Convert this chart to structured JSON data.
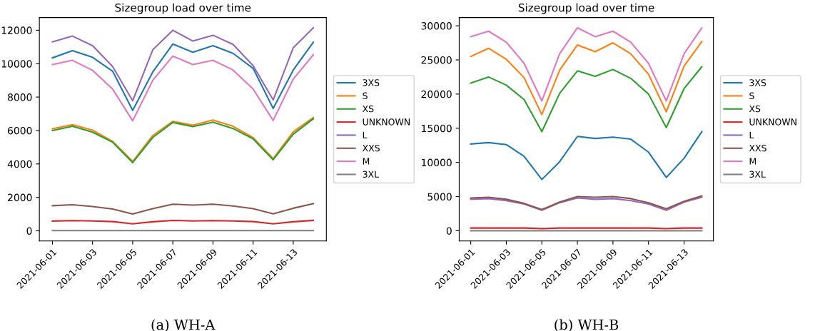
{
  "chart_data": [
    {
      "type": "line",
      "title": "Sizegroup load over time",
      "x": [
        "2021-06-01",
        "2021-06-02",
        "2021-06-03",
        "2021-06-04",
        "2021-06-05",
        "2021-06-06",
        "2021-06-07",
        "2021-06-08",
        "2021-06-09",
        "2021-06-10",
        "2021-06-11",
        "2021-06-12",
        "2021-06-13",
        "2021-06-14"
      ],
      "xlim": [
        "2021-05-31T08:24",
        "2021-06-14T15:36"
      ],
      "xticks": [
        "2021-06-01",
        "2021-06-03",
        "2021-06-05",
        "2021-06-07",
        "2021-06-09",
        "2021-06-11",
        "2021-06-13"
      ],
      "ylim": [
        -610,
        12760
      ],
      "yticks": [
        0,
        2000,
        4000,
        6000,
        8000,
        10000,
        12000
      ],
      "legend": "right",
      "grid": false,
      "annotations": [
        "(a) WH-A"
      ],
      "series": [
        {
          "name": "3XS",
          "color": "#1f77b4",
          "values": [
            10350,
            10780,
            10380,
            9550,
            7200,
            9500,
            11170,
            10680,
            11080,
            10620,
            9720,
            7320,
            9620,
            11280
          ]
        },
        {
          "name": "S",
          "color": "#ff7f0e",
          "values": [
            6100,
            6350,
            6020,
            5350,
            4150,
            5700,
            6550,
            6320,
            6630,
            6250,
            5570,
            4320,
            5920,
            6780
          ]
        },
        {
          "name": "XS",
          "color": "#2ca02c",
          "values": [
            6000,
            6250,
            5900,
            5300,
            4080,
            5580,
            6480,
            6230,
            6500,
            6120,
            5500,
            4250,
            5780,
            6700
          ]
        },
        {
          "name": "UNKNOWN",
          "color": "#d62728",
          "values": [
            580,
            610,
            590,
            550,
            420,
            540,
            620,
            590,
            610,
            590,
            550,
            420,
            540,
            620
          ]
        },
        {
          "name": "L",
          "color": "#9467bd",
          "values": [
            11300,
            11650,
            11080,
            9830,
            7780,
            10830,
            12000,
            11350,
            11700,
            11150,
            9880,
            7830,
            10950,
            12150
          ]
        },
        {
          "name": "XXS",
          "color": "#8c564b",
          "values": [
            1500,
            1560,
            1450,
            1300,
            1000,
            1320,
            1590,
            1540,
            1590,
            1480,
            1320,
            1010,
            1350,
            1620
          ]
        },
        {
          "name": "M",
          "color": "#e377c2",
          "values": [
            9950,
            10200,
            9600,
            8480,
            6580,
            9000,
            10450,
            9950,
            10200,
            9620,
            8480,
            6600,
            9080,
            10530
          ]
        },
        {
          "name": "3XL",
          "color": "#7f7f7f",
          "values": [
            10,
            10,
            10,
            10,
            10,
            10,
            10,
            10,
            10,
            10,
            10,
            10,
            10,
            10
          ]
        }
      ]
    },
    {
      "type": "line",
      "title": "Sizegroup load over time",
      "x": [
        "2021-06-01",
        "2021-06-02",
        "2021-06-03",
        "2021-06-04",
        "2021-06-05",
        "2021-06-06",
        "2021-06-07",
        "2021-06-08",
        "2021-06-09",
        "2021-06-10",
        "2021-06-11",
        "2021-06-12",
        "2021-06-13",
        "2021-06-14"
      ],
      "xlim": [
        "2021-05-31T08:24",
        "2021-06-14T15:36"
      ],
      "xticks": [
        "2021-06-01",
        "2021-06-03",
        "2021-06-05",
        "2021-06-07",
        "2021-06-09",
        "2021-06-11",
        "2021-06-13"
      ],
      "ylim": [
        -1500,
        31200
      ],
      "yticks": [
        0,
        5000,
        10000,
        15000,
        20000,
        25000,
        30000
      ],
      "legend": "right",
      "grid": false,
      "annotations": [
        "(b) WH-B"
      ],
      "series": [
        {
          "name": "3XS",
          "color": "#1f77b4",
          "values": [
            12700,
            12900,
            12600,
            10900,
            7500,
            10100,
            13800,
            13500,
            13700,
            13400,
            11500,
            7800,
            10600,
            14500
          ]
        },
        {
          "name": "S",
          "color": "#ff7f0e",
          "values": [
            25500,
            26700,
            25100,
            22400,
            17000,
            23500,
            27200,
            26200,
            27500,
            25900,
            22900,
            17400,
            24100,
            27700
          ]
        },
        {
          "name": "XS",
          "color": "#2ca02c",
          "values": [
            21600,
            22500,
            21300,
            19200,
            14500,
            20100,
            23400,
            22600,
            23600,
            22300,
            20000,
            15100,
            20800,
            24000
          ]
        },
        {
          "name": "UNKNOWN",
          "color": "#d62728",
          "values": [
            400,
            400,
            400,
            400,
            300,
            400,
            400,
            400,
            400,
            400,
            400,
            300,
            400,
            400
          ]
        },
        {
          "name": "L",
          "color": "#9467bd",
          "values": [
            4600,
            4700,
            4400,
            3900,
            3000,
            4100,
            4800,
            4600,
            4700,
            4400,
            3900,
            3000,
            4200,
            4900
          ]
        },
        {
          "name": "XXS",
          "color": "#8c564b",
          "values": [
            4800,
            4900,
            4600,
            4000,
            3100,
            4200,
            5000,
            4900,
            5000,
            4700,
            4100,
            3200,
            4300,
            5100
          ]
        },
        {
          "name": "M",
          "color": "#e377c2",
          "values": [
            28400,
            29200,
            27600,
            24500,
            19000,
            25900,
            29700,
            28400,
            29200,
            27600,
            24500,
            19000,
            25900,
            29700
          ]
        },
        {
          "name": "3XL",
          "color": "#7f7f7f",
          "values": [
            0,
            0,
            0,
            0,
            0,
            0,
            0,
            0,
            0,
            0,
            0,
            0,
            0,
            0
          ]
        }
      ]
    }
  ]
}
